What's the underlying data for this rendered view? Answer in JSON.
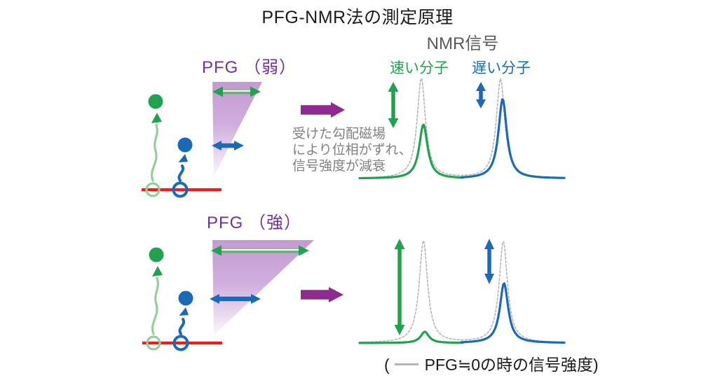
{
  "title": "PFG-NMR法の測定原理",
  "nmr_signal": {
    "label": "NMR信号",
    "fast_label": "速い分子",
    "slow_label": "遅い分子"
  },
  "panels": {
    "weak": {
      "pfg_label": "PFG （弱）",
      "signal_intensity": {
        "fast": 0.54,
        "slow": 0.8
      }
    },
    "strong": {
      "pfg_label": "PFG （強）",
      "signal_intensity": {
        "fast": 0.11,
        "slow": 0.59
      }
    }
  },
  "gradient_note": {
    "line1": "受けた勾配磁場",
    "line2": "により位相がずれ、",
    "line3": "信号強度が減衰"
  },
  "caption": {
    "prefix": "(",
    "legend_text": "PFG≒0の時の信号強度)"
  },
  "colors": {
    "green": "#22a24f",
    "light_green": "#97cd9b",
    "blue": "#1b6ab5",
    "purple_label": "#7030a0",
    "purple_arrow": "#8e2a90",
    "gradient_purple": "#c49bcf",
    "red": "#ee1c1c",
    "dashed_gray": "#b5b5b5",
    "note_gray": "#808080",
    "nmr_label_gray": "#595959"
  }
}
